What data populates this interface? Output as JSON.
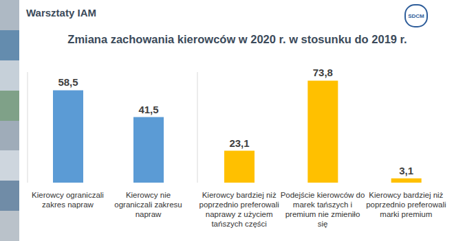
{
  "header": "Warsztaty IAM",
  "logo": "SDCM",
  "title": "Zmiana zachowania kierowców w 2020 r. w stosunku do 2019 r.",
  "chart_data": [
    {
      "type": "bar",
      "categories": [
        "Kierowcy ograniczali zakres napraw",
        "Kierowcy nie ograniczali zakresu napraw"
      ],
      "values": [
        58.5,
        41.5
      ],
      "value_labels": [
        "58,5",
        "41,5"
      ],
      "color": "#5b9bd5",
      "ylim": [
        0,
        70
      ],
      "data_labels": true,
      "tick_labels": "x",
      "grid": false
    },
    {
      "type": "bar",
      "categories": [
        "Kierowcy bardziej niż poprzednio preferowali naprawy z użyciem tańszych części",
        "Podejście kierowców do marek tańszych i premium nie zmieniło się",
        "Kierowcy bardziej niż poprzednio preferowali marki premium"
      ],
      "values": [
        23.1,
        73.8,
        3.1
      ],
      "value_labels": [
        "23,1",
        "73,8",
        "3,1"
      ],
      "color": "#ffc000",
      "ylim": [
        0,
        80
      ],
      "data_labels": true,
      "tick_labels": "x",
      "grid": false
    }
  ]
}
